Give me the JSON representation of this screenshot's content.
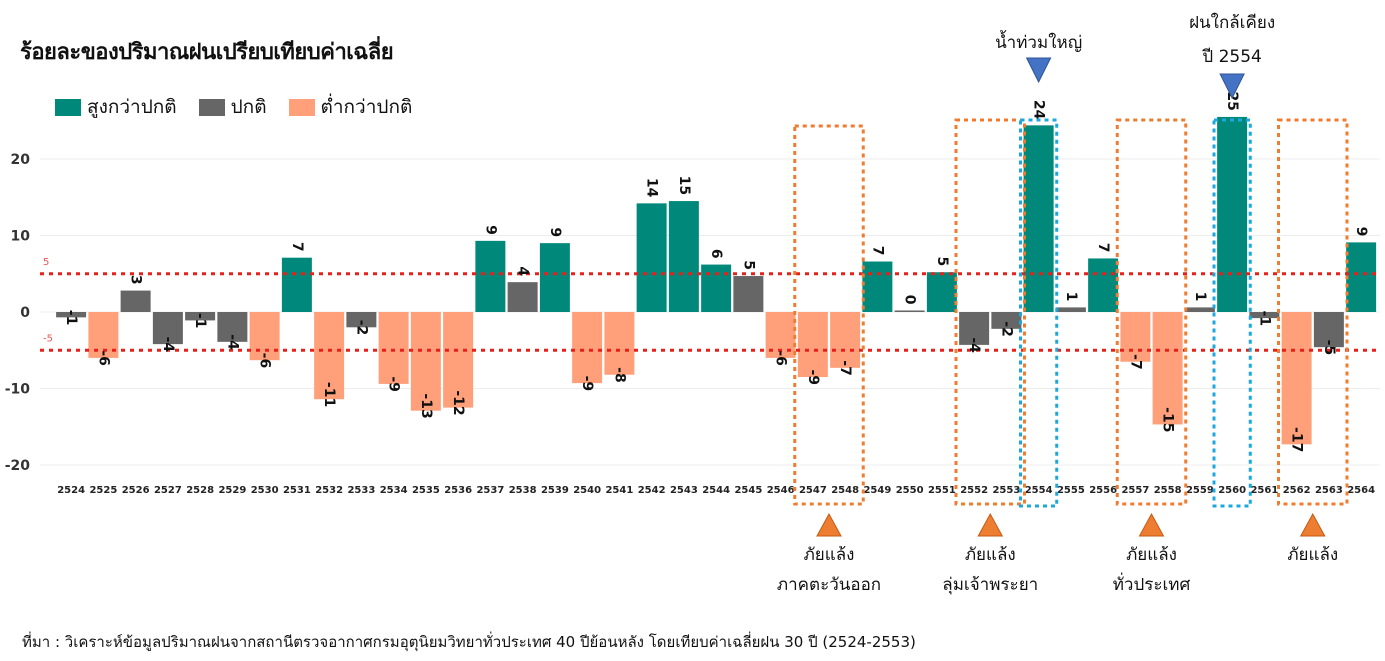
{
  "title": "ร้อยละของปริมาณฝนเปรียบเทียบค่าเฉลี่ย",
  "legend": {
    "above": "สูงกว่าปกติ",
    "normal": "ปกติ",
    "below": "ต่ำกว่าปกติ"
  },
  "colors": {
    "above": "#00897B",
    "normal": "#666666",
    "below": "#FFA07A",
    "threshold_line": "#E8201A",
    "drought_box": "#EE7D31",
    "flood_box": "#1CA8DD",
    "flood_marker": "#4472C4",
    "drought_marker": "#ED7D31"
  },
  "source": "ที่มา : วิเคราะห์ข้อมูลปริมาณฝนจากสถานีตรวจอากาศกรมอุตุนิยมวิทยาทั่วประเทศ 40 ปีย้อนหลัง โดยเทียบค่าเฉลี่ยฝน 30 ปี (2524-2553)",
  "chart_data": {
    "type": "bar",
    "title": "ร้อยละของปริมาณฝนเปรียบเทียบค่าเฉลี่ย",
    "xlabel": "",
    "ylabel": "",
    "ylim": [
      -22,
      26
    ],
    "yticks": [
      -20,
      -10,
      0,
      10,
      20
    ],
    "threshold_lines": [
      5,
      -5
    ],
    "threshold_labels": [
      "5",
      "-5"
    ],
    "grid": true,
    "legend_position": "top-left",
    "categories": [
      "2524",
      "2525",
      "2526",
      "2527",
      "2528",
      "2529",
      "2530",
      "2531",
      "2532",
      "2533",
      "2534",
      "2535",
      "2536",
      "2537",
      "2538",
      "2539",
      "2540",
      "2541",
      "2542",
      "2543",
      "2544",
      "2545",
      "2546",
      "2547",
      "2548",
      "2549",
      "2550",
      "2551",
      "2552",
      "2553",
      "2554",
      "2555",
      "2556",
      "2557",
      "2558",
      "2559",
      "2560",
      "2561",
      "2562",
      "2563",
      "2564"
    ],
    "values": [
      -0.7,
      -6,
      2.8,
      -4.2,
      -1.1,
      -3.9,
      -6.3,
      7.1,
      -11.4,
      -2,
      -9.4,
      -12.9,
      -12.5,
      9.3,
      3.9,
      9,
      -9.3,
      -8.2,
      14.2,
      14.5,
      6.2,
      4.7,
      -6,
      -8.5,
      -7.3,
      6.6,
      0.2,
      5.2,
      -4.3,
      -2.2,
      24.4,
      0.6,
      7,
      -6.5,
      -14.7,
      0.6,
      25.5,
      -0.8,
      -17.3,
      -4.6,
      9.1
    ],
    "labels": [
      "-1",
      "-6",
      "3",
      "-4",
      "-1",
      "-4",
      "-6",
      "7",
      "-11",
      "-2",
      "-9",
      "-13",
      "-12",
      "9",
      "4",
      "9",
      "-9",
      "-8",
      "14",
      "15",
      "6",
      "5",
      "-6",
      "-9",
      "-7",
      "7",
      "0",
      "5",
      "-4",
      "-2",
      "24",
      "1",
      "7",
      "-7",
      "-15",
      "1",
      "25",
      "-1",
      "-17",
      "-5",
      "9"
    ],
    "categories_type": [
      "normal",
      "below",
      "normal",
      "normal",
      "normal",
      "normal",
      "below",
      "above",
      "below",
      "normal",
      "below",
      "below",
      "below",
      "above",
      "normal",
      "above",
      "below",
      "below",
      "above",
      "above",
      "above",
      "normal",
      "below",
      "below",
      "below",
      "above",
      "normal",
      "above",
      "normal",
      "normal",
      "above",
      "normal",
      "above",
      "below",
      "below",
      "normal",
      "above",
      "normal",
      "below",
      "normal",
      "above"
    ],
    "annotations": [
      {
        "kind": "drought",
        "from": "2547",
        "to": "2548",
        "text": [
          "ภัยแล้ง",
          "ภาคตะวันออก"
        ]
      },
      {
        "kind": "drought",
        "from": "2552",
        "to": "2553",
        "text": [
          "ภัยแล้ง",
          "ลุ่มเจ้าพระยา"
        ]
      },
      {
        "kind": "flood",
        "from": "2554",
        "to": "2554",
        "text": [
          "น้ำท่วมใหญ่"
        ]
      },
      {
        "kind": "drought",
        "from": "2557",
        "to": "2558",
        "text": [
          "ภัยแล้ง",
          "ทั่วประเทศ"
        ]
      },
      {
        "kind": "flood",
        "from": "2560",
        "to": "2560",
        "text": [
          "ฝนใกล้เคียง",
          "ปี 2554"
        ]
      },
      {
        "kind": "drought",
        "from": "2562",
        "to": "2563",
        "text": [
          "ภัยแล้ง"
        ]
      }
    ]
  }
}
